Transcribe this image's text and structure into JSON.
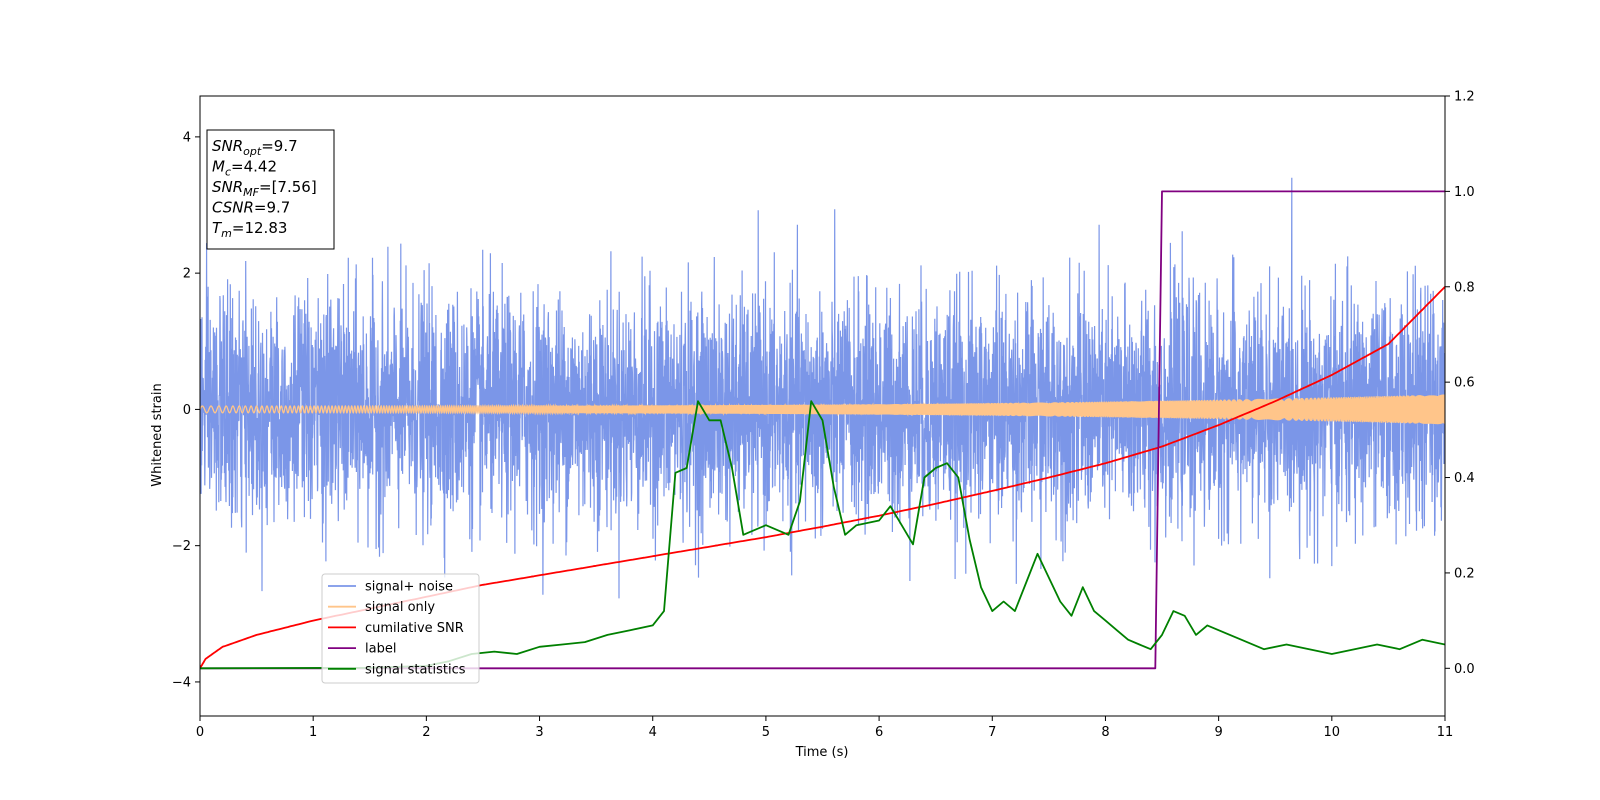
{
  "chart_data": {
    "type": "line",
    "xlabel": "Time (s)",
    "ylabel": "Whitened strain",
    "xlim": [
      0,
      11
    ],
    "ylim_left": [
      -4.5,
      4.6
    ],
    "ylim_right": [
      -0.1,
      1.2
    ],
    "x_ticks": [
      0,
      1,
      2,
      3,
      4,
      5,
      6,
      7,
      8,
      9,
      10,
      11
    ],
    "y_ticks_left": [
      -4,
      -2,
      0,
      2,
      4
    ],
    "y_ticks_right": [
      "0.0",
      "0.2",
      "0.4",
      "0.6",
      "0.8",
      "1.0",
      "1.2"
    ],
    "info_box": [
      {
        "base": "SNR",
        "sub": "opt",
        "rest": "=9.7"
      },
      {
        "base": "M",
        "sub": "c",
        "rest": "=4.42"
      },
      {
        "base": "SNR",
        "sub": "MF",
        "rest": "=[7.56]"
      },
      {
        "base": "CSNR",
        "sub": "",
        "rest": "=9.7"
      },
      {
        "base": "T",
        "sub": "m",
        "rest": "=12.83"
      }
    ],
    "legend": {
      "position": "lower-left",
      "entries": [
        {
          "label": "signal+ noise",
          "color": "#7b96e8"
        },
        {
          "label": "signal only",
          "color": "#ffc58a"
        },
        {
          "label": "cumilative SNR",
          "color": "#ff0000"
        },
        {
          "label": "label",
          "color": "#800080"
        },
        {
          "label": "signal statistics",
          "color": "#008000"
        }
      ]
    },
    "series": [
      {
        "name": "signal+ noise",
        "axis": "left",
        "color": "#7b96e8",
        "kind": "noise",
        "sigma": 1.0,
        "approx_range": [
          -4.1,
          3.4
        ]
      },
      {
        "name": "signal only",
        "axis": "left",
        "color": "#ffc58a",
        "kind": "chirp",
        "amplitude_start": 0.05,
        "amplitude_end": 0.22
      },
      {
        "name": "cumilative SNR",
        "axis": "right",
        "color": "#ff0000",
        "x": [
          0,
          0.05,
          0.2,
          0.5,
          1,
          1.5,
          2,
          2.5,
          3,
          3.5,
          4,
          4.5,
          5,
          5.5,
          6,
          6.5,
          7,
          7.5,
          8,
          8.5,
          9,
          9.5,
          10,
          10.5,
          11
        ],
        "y": [
          0.0,
          0.02,
          0.045,
          0.07,
          0.1,
          0.125,
          0.15,
          0.175,
          0.195,
          0.215,
          0.235,
          0.255,
          0.275,
          0.297,
          0.32,
          0.345,
          0.372,
          0.4,
          0.43,
          0.465,
          0.51,
          0.56,
          0.615,
          0.68,
          0.8
        ]
      },
      {
        "name": "label",
        "axis": "right",
        "color": "#800080",
        "x": [
          0,
          8.44,
          8.5,
          11
        ],
        "y": [
          0.0,
          0.0,
          1.0,
          1.0
        ]
      },
      {
        "name": "signal statistics",
        "axis": "right",
        "color": "#008000",
        "x": [
          0,
          1.5,
          2.0,
          2.2,
          2.4,
          2.6,
          2.8,
          3.0,
          3.2,
          3.4,
          3.6,
          3.8,
          4.0,
          4.1,
          4.2,
          4.3,
          4.4,
          4.5,
          4.6,
          4.7,
          4.8,
          5.0,
          5.2,
          5.3,
          5.4,
          5.5,
          5.6,
          5.7,
          5.8,
          6.0,
          6.1,
          6.2,
          6.3,
          6.4,
          6.5,
          6.6,
          6.7,
          6.8,
          6.9,
          7.0,
          7.1,
          7.2,
          7.3,
          7.4,
          7.5,
          7.6,
          7.7,
          7.8,
          7.9,
          8.0,
          8.1,
          8.2,
          8.3,
          8.4,
          8.5,
          8.6,
          8.7,
          8.8,
          8.9,
          9.0,
          9.2,
          9.4,
          9.6,
          9.8,
          10.0,
          10.2,
          10.4,
          10.6,
          10.8,
          11.0
        ],
        "y": [
          0.0,
          0.001,
          0.005,
          0.015,
          0.03,
          0.035,
          0.03,
          0.045,
          0.05,
          0.055,
          0.07,
          0.08,
          0.09,
          0.12,
          0.41,
          0.42,
          0.56,
          0.52,
          0.52,
          0.42,
          0.28,
          0.3,
          0.28,
          0.35,
          0.56,
          0.52,
          0.38,
          0.28,
          0.3,
          0.31,
          0.34,
          0.3,
          0.26,
          0.4,
          0.42,
          0.43,
          0.4,
          0.27,
          0.17,
          0.12,
          0.14,
          0.12,
          0.18,
          0.24,
          0.19,
          0.14,
          0.11,
          0.17,
          0.12,
          0.1,
          0.08,
          0.06,
          0.05,
          0.04,
          0.07,
          0.12,
          0.11,
          0.07,
          0.09,
          0.08,
          0.06,
          0.04,
          0.05,
          0.04,
          0.03,
          0.04,
          0.05,
          0.04,
          0.06,
          0.05
        ]
      }
    ]
  }
}
